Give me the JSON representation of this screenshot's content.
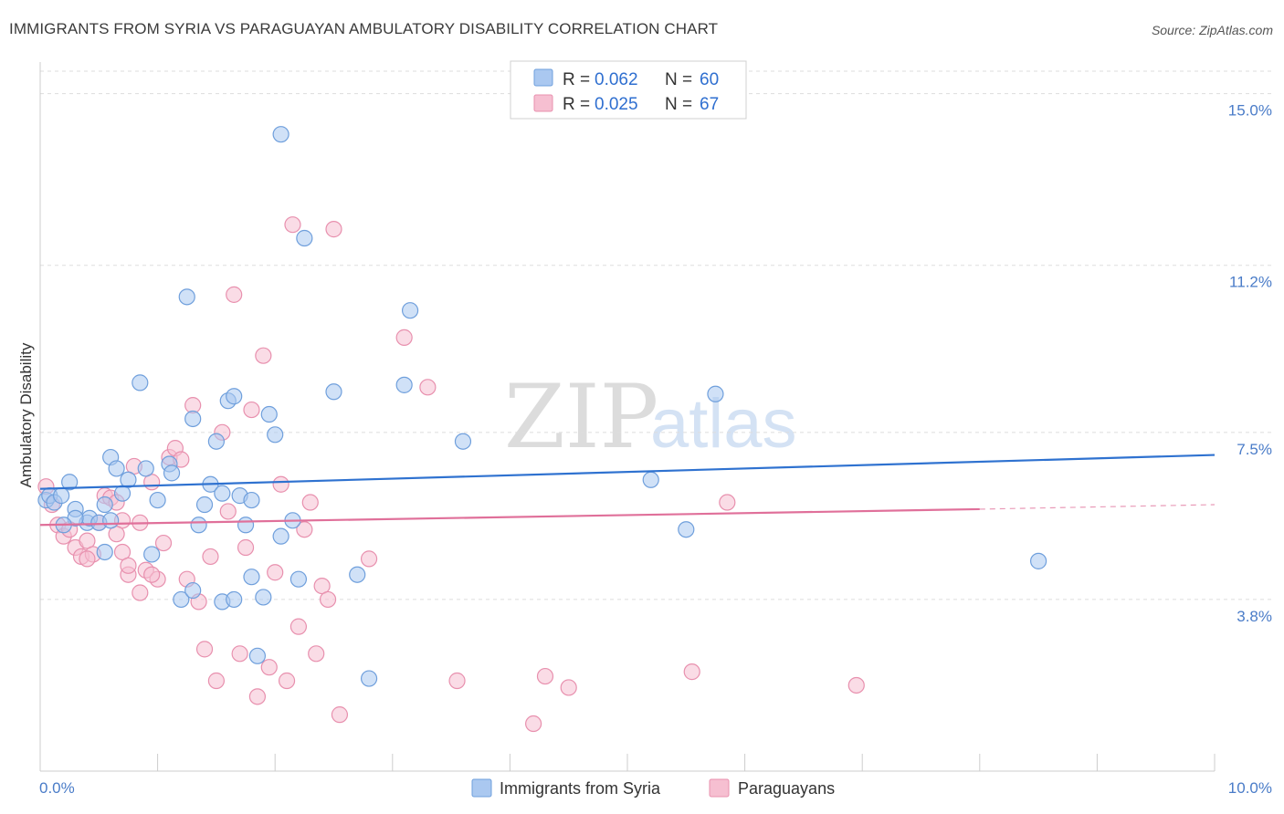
{
  "title": "IMMIGRANTS FROM SYRIA VS PARAGUAYAN AMBULATORY DISABILITY CORRELATION CHART",
  "source": "Source: ZipAtlas.com",
  "watermark": {
    "zip": "ZIP",
    "atlas": "atlas"
  },
  "colors": {
    "syria_fill": "#aac8f0",
    "syria_stroke": "#6f9fdc",
    "syria_line": "#2f72d0",
    "para_fill": "#f6bfd1",
    "para_stroke": "#e890ae",
    "para_line": "#e0709a",
    "grid": "#dddddd",
    "tick_text": "#4a7cc8"
  },
  "legend": {
    "entries": [
      {
        "r_label": "R = ",
        "r_value": "0.062",
        "n_label": "N = ",
        "n_value": "60"
      },
      {
        "r_label": "R = ",
        "r_value": "0.025",
        "n_label": "N = ",
        "n_value": "67"
      }
    ]
  },
  "bottom_legend": [
    "Immigrants from Syria",
    "Paraguayans"
  ],
  "chart_data": {
    "type": "scatter",
    "title": "IMMIGRANTS FROM SYRIA VS PARAGUAYAN AMBULATORY DISABILITY CORRELATION CHART",
    "xlabel": "",
    "ylabel": "Ambulatory Disability",
    "xlim": [
      0,
      10
    ],
    "ylim": [
      0,
      15.7
    ],
    "x_tick_labels": [
      {
        "value": 0,
        "label": "0.0%"
      },
      {
        "value": 10,
        "label": "10.0%"
      }
    ],
    "y_ticks": [
      {
        "value": 3.8,
        "label": "3.8%"
      },
      {
        "value": 7.5,
        "label": "7.5%"
      },
      {
        "value": 11.2,
        "label": "11.2%"
      },
      {
        "value": 15.0,
        "label": "15.0%"
      }
    ],
    "grid": "horizontal dashed",
    "legend_position": "top-center",
    "series": [
      {
        "name": "Immigrants from Syria",
        "trend": {
          "x": [
            0,
            10
          ],
          "y": [
            6.25,
            7.0
          ]
        },
        "points": [
          {
            "x": 0.05,
            "y": 6.0
          },
          {
            "x": 0.08,
            "y": 6.1
          },
          {
            "x": 0.12,
            "y": 5.95
          },
          {
            "x": 0.18,
            "y": 6.1
          },
          {
            "x": 0.25,
            "y": 6.4
          },
          {
            "x": 0.3,
            "y": 5.8
          },
          {
            "x": 0.4,
            "y": 5.5
          },
          {
            "x": 0.42,
            "y": 5.6
          },
          {
            "x": 0.5,
            "y": 5.5
          },
          {
            "x": 0.55,
            "y": 5.9
          },
          {
            "x": 0.6,
            "y": 6.95
          },
          {
            "x": 0.65,
            "y": 6.7
          },
          {
            "x": 0.7,
            "y": 6.15
          },
          {
            "x": 0.75,
            "y": 6.45
          },
          {
            "x": 0.85,
            "y": 8.6
          },
          {
            "x": 0.9,
            "y": 6.7
          },
          {
            "x": 1.0,
            "y": 6.0
          },
          {
            "x": 1.1,
            "y": 6.8
          },
          {
            "x": 1.12,
            "y": 6.6
          },
          {
            "x": 1.2,
            "y": 3.8
          },
          {
            "x": 1.25,
            "y": 10.5
          },
          {
            "x": 1.3,
            "y": 7.8
          },
          {
            "x": 1.35,
            "y": 5.45
          },
          {
            "x": 1.4,
            "y": 5.9
          },
          {
            "x": 1.45,
            "y": 6.35
          },
          {
            "x": 1.5,
            "y": 7.3
          },
          {
            "x": 1.55,
            "y": 6.15
          },
          {
            "x": 1.6,
            "y": 8.2
          },
          {
            "x": 1.55,
            "y": 3.75
          },
          {
            "x": 1.65,
            "y": 8.3
          },
          {
            "x": 1.65,
            "y": 3.8
          },
          {
            "x": 1.7,
            "y": 6.1
          },
          {
            "x": 1.75,
            "y": 5.45
          },
          {
            "x": 1.8,
            "y": 4.3
          },
          {
            "x": 1.8,
            "y": 6.0
          },
          {
            "x": 1.85,
            "y": 2.55
          },
          {
            "x": 1.9,
            "y": 3.85
          },
          {
            "x": 1.95,
            "y": 7.9
          },
          {
            "x": 2.0,
            "y": 7.45
          },
          {
            "x": 2.05,
            "y": 5.2
          },
          {
            "x": 2.05,
            "y": 14.1
          },
          {
            "x": 2.15,
            "y": 5.55
          },
          {
            "x": 2.2,
            "y": 4.25
          },
          {
            "x": 2.25,
            "y": 11.8
          },
          {
            "x": 2.5,
            "y": 8.4
          },
          {
            "x": 2.7,
            "y": 4.35
          },
          {
            "x": 2.8,
            "y": 2.05
          },
          {
            "x": 3.1,
            "y": 8.55
          },
          {
            "x": 3.15,
            "y": 10.2
          },
          {
            "x": 3.6,
            "y": 7.3
          },
          {
            "x": 5.2,
            "y": 6.45
          },
          {
            "x": 5.5,
            "y": 5.35
          },
          {
            "x": 5.75,
            "y": 8.35
          },
          {
            "x": 8.5,
            "y": 4.65
          },
          {
            "x": 1.3,
            "y": 4.0
          },
          {
            "x": 0.95,
            "y": 4.8
          },
          {
            "x": 0.55,
            "y": 4.85
          },
          {
            "x": 0.6,
            "y": 5.55
          },
          {
            "x": 0.3,
            "y": 5.6
          },
          {
            "x": 0.2,
            "y": 5.45
          }
        ]
      },
      {
        "name": "Paraguayans",
        "trend": {
          "x": [
            0,
            8.0
          ],
          "y": [
            5.45,
            5.8
          ]
        },
        "trend_dashed": {
          "x": [
            8.0,
            10
          ],
          "y": [
            5.8,
            5.9
          ]
        },
        "points": [
          {
            "x": 0.05,
            "y": 6.3
          },
          {
            "x": 0.1,
            "y": 5.9
          },
          {
            "x": 0.15,
            "y": 5.45
          },
          {
            "x": 0.2,
            "y": 5.2
          },
          {
            "x": 0.25,
            "y": 5.35
          },
          {
            "x": 0.3,
            "y": 4.95
          },
          {
            "x": 0.35,
            "y": 4.75
          },
          {
            "x": 0.4,
            "y": 5.1
          },
          {
            "x": 0.45,
            "y": 4.8
          },
          {
            "x": 0.5,
            "y": 5.5
          },
          {
            "x": 0.55,
            "y": 6.1
          },
          {
            "x": 0.6,
            "y": 6.05
          },
          {
            "x": 0.65,
            "y": 5.95
          },
          {
            "x": 0.7,
            "y": 5.55
          },
          {
            "x": 0.7,
            "y": 4.85
          },
          {
            "x": 0.75,
            "y": 4.35
          },
          {
            "x": 0.8,
            "y": 6.75
          },
          {
            "x": 0.85,
            "y": 5.5
          },
          {
            "x": 0.9,
            "y": 4.45
          },
          {
            "x": 0.95,
            "y": 6.4
          },
          {
            "x": 1.0,
            "y": 4.25
          },
          {
            "x": 1.05,
            "y": 5.05
          },
          {
            "x": 1.1,
            "y": 6.95
          },
          {
            "x": 1.15,
            "y": 7.15
          },
          {
            "x": 1.2,
            "y": 6.9
          },
          {
            "x": 1.25,
            "y": 4.25
          },
          {
            "x": 1.3,
            "y": 8.1
          },
          {
            "x": 1.35,
            "y": 3.75
          },
          {
            "x": 1.4,
            "y": 2.7
          },
          {
            "x": 1.45,
            "y": 4.75
          },
          {
            "x": 1.5,
            "y": 2.0
          },
          {
            "x": 1.55,
            "y": 7.5
          },
          {
            "x": 1.6,
            "y": 5.75
          },
          {
            "x": 1.65,
            "y": 10.55
          },
          {
            "x": 1.7,
            "y": 2.6
          },
          {
            "x": 1.75,
            "y": 4.95
          },
          {
            "x": 1.8,
            "y": 8.0
          },
          {
            "x": 1.85,
            "y": 1.65
          },
          {
            "x": 1.9,
            "y": 9.2
          },
          {
            "x": 1.95,
            "y": 2.3
          },
          {
            "x": 2.0,
            "y": 4.4
          },
          {
            "x": 2.05,
            "y": 6.35
          },
          {
            "x": 2.1,
            "y": 2.0
          },
          {
            "x": 2.15,
            "y": 12.1
          },
          {
            "x": 2.2,
            "y": 3.2
          },
          {
            "x": 2.25,
            "y": 5.35
          },
          {
            "x": 2.3,
            "y": 5.95
          },
          {
            "x": 2.35,
            "y": 2.6
          },
          {
            "x": 2.4,
            "y": 4.1
          },
          {
            "x": 2.45,
            "y": 3.8
          },
          {
            "x": 2.5,
            "y": 12.0
          },
          {
            "x": 2.55,
            "y": 1.25
          },
          {
            "x": 2.8,
            "y": 4.7
          },
          {
            "x": 3.1,
            "y": 9.6
          },
          {
            "x": 3.3,
            "y": 8.5
          },
          {
            "x": 3.55,
            "y": 2.0
          },
          {
            "x": 4.2,
            "y": 1.05
          },
          {
            "x": 4.3,
            "y": 2.1
          },
          {
            "x": 4.5,
            "y": 1.85
          },
          {
            "x": 5.55,
            "y": 2.2
          },
          {
            "x": 5.85,
            "y": 5.95
          },
          {
            "x": 6.95,
            "y": 1.9
          },
          {
            "x": 0.75,
            "y": 4.55
          },
          {
            "x": 0.4,
            "y": 4.7
          },
          {
            "x": 0.85,
            "y": 3.95
          },
          {
            "x": 0.65,
            "y": 5.25
          },
          {
            "x": 0.95,
            "y": 4.35
          }
        ]
      }
    ]
  }
}
